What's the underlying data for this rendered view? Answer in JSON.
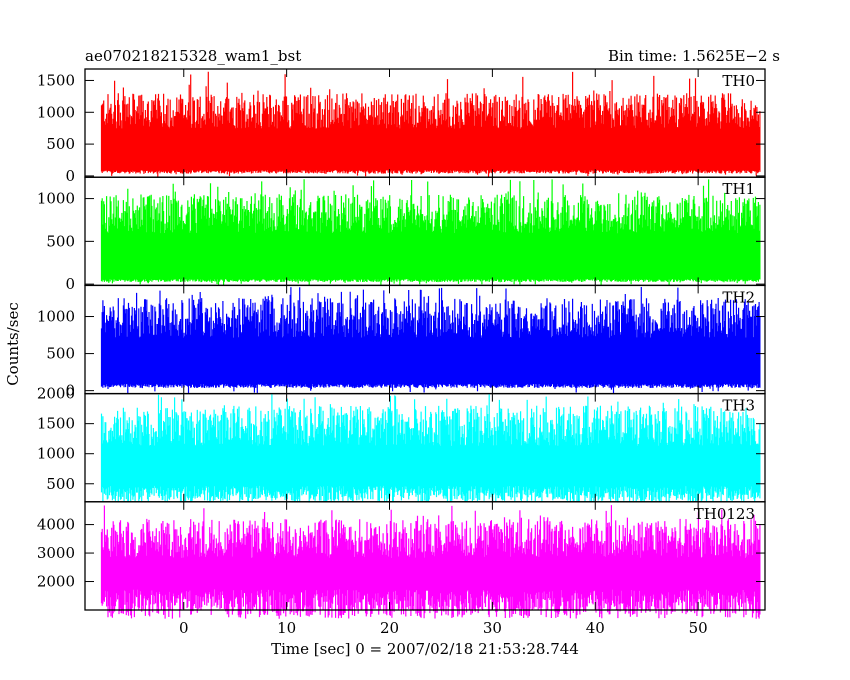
{
  "header": {
    "left_title": "ae070218215328_wam1_bst",
    "right_title": "Bin time: 1.5625E−2 s"
  },
  "ylabel": "Counts/sec",
  "xlabel": "Time [sec] 0 = 2007/02/18 21:53:28.744",
  "chart_data": {
    "type": "line",
    "x_range": [
      -9.6,
      56.5
    ],
    "x_ticks": [
      0,
      10,
      20,
      30,
      40,
      50
    ],
    "x_tick_labels": [
      "0",
      "10",
      "20",
      "30",
      "40",
      "50"
    ],
    "data_x_range": [
      -8.0,
      56.0
    ],
    "bin_time_s": 0.015625,
    "grid": false,
    "panels": [
      {
        "name": "TH0",
        "color": "#ff0000",
        "ylim": [
          -20,
          1680
        ],
        "y_ticks": [
          0,
          500,
          1000,
          1500
        ],
        "y_tick_labels": [
          "0",
          "500",
          "1000",
          "1500"
        ],
        "typical_low": 60,
        "typical_high": 1300,
        "peak": 1650
      },
      {
        "name": "TH1",
        "color": "#00ff00",
        "ylim": [
          -15,
          1250
        ],
        "y_ticks": [
          0,
          500,
          1000
        ],
        "y_tick_labels": [
          "0",
          "500",
          "1000"
        ],
        "typical_low": 40,
        "typical_high": 1050,
        "peak": 1230
      },
      {
        "name": "TH2",
        "color": "#0000ff",
        "ylim": [
          -40,
          1420
        ],
        "y_ticks": [
          0,
          500,
          1000
        ],
        "y_tick_labels": [
          "0",
          "500",
          "1000"
        ],
        "typical_low": 60,
        "typical_high": 1250,
        "peak": 1400
      },
      {
        "name": "TH3",
        "color": "#00ffff",
        "ylim": [
          200,
          2000
        ],
        "y_ticks": [
          500,
          1000,
          1500,
          2000
        ],
        "y_tick_labels": [
          "500",
          "1000",
          "1500",
          "2000"
        ],
        "typical_low": 310,
        "typical_high": 1800,
        "peak": 1990
      },
      {
        "name": "TH0123",
        "color": "#ff00ff",
        "ylim": [
          1000,
          4800
        ],
        "y_ticks": [
          2000,
          3000,
          4000
        ],
        "y_tick_labels": [
          "2000",
          "3000",
          "4000"
        ],
        "typical_low": 1150,
        "typical_high": 4200,
        "peak": 4700
      }
    ]
  }
}
